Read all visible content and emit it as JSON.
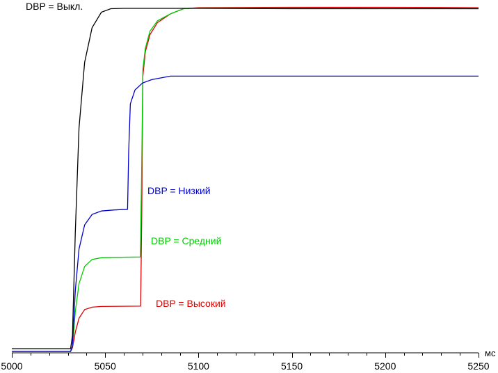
{
  "chart_data": {
    "type": "line",
    "x_unit": "мс",
    "xlim": [
      5000,
      5250
    ],
    "x_ticks": [
      5000,
      5050,
      5100,
      5150,
      5200,
      5250
    ],
    "x_tick_labels": [
      "5000",
      "5050",
      "5100",
      "5150",
      "5200",
      "5250"
    ],
    "ylim": [
      0,
      1
    ],
    "grid": false,
    "legend": "inline labels",
    "series": [
      {
        "name": "DBP = Выкл.",
        "color": "#000000",
        "points": [
          [
            5000,
            0.012
          ],
          [
            5031.5,
            0.012
          ],
          [
            5032.5,
            0.05
          ],
          [
            5034,
            0.35
          ],
          [
            5036,
            0.65
          ],
          [
            5039,
            0.84
          ],
          [
            5043,
            0.94
          ],
          [
            5048,
            0.985
          ],
          [
            5053,
            0.995
          ],
          [
            5060,
            0.996
          ],
          [
            5100,
            0.996
          ],
          [
            5150,
            0.995
          ],
          [
            5200,
            0.995
          ],
          [
            5250,
            0.995
          ]
        ]
      },
      {
        "name": "DBP = Низкий",
        "color": "#0000cc",
        "points": [
          [
            5000,
            0.004
          ],
          [
            5031.5,
            0.004
          ],
          [
            5032.5,
            0.02
          ],
          [
            5034,
            0.18
          ],
          [
            5036,
            0.3
          ],
          [
            5039,
            0.37
          ],
          [
            5043,
            0.4
          ],
          [
            5048,
            0.41
          ],
          [
            5055,
            0.413
          ],
          [
            5062,
            0.415
          ],
          [
            5062.6,
            0.58
          ],
          [
            5063.5,
            0.72
          ],
          [
            5066,
            0.76
          ],
          [
            5070,
            0.78
          ],
          [
            5075,
            0.79
          ],
          [
            5085,
            0.8
          ],
          [
            5100,
            0.8
          ],
          [
            5150,
            0.8
          ],
          [
            5200,
            0.8
          ],
          [
            5250,
            0.8
          ]
        ]
      },
      {
        "name": "DBP = Средний",
        "color": "#00cc00",
        "points": [
          [
            5000,
            0.004
          ],
          [
            5031.5,
            0.004
          ],
          [
            5032.5,
            0.02
          ],
          [
            5034,
            0.12
          ],
          [
            5036,
            0.2
          ],
          [
            5039,
            0.25
          ],
          [
            5043,
            0.27
          ],
          [
            5048,
            0.275
          ],
          [
            5055,
            0.276
          ],
          [
            5068.8,
            0.277
          ],
          [
            5069.5,
            0.5
          ],
          [
            5070.2,
            0.82
          ],
          [
            5071.5,
            0.88
          ],
          [
            5074,
            0.93
          ],
          [
            5078,
            0.96
          ],
          [
            5085,
            0.98
          ],
          [
            5092,
            0.995
          ],
          [
            5100,
            0.997
          ],
          [
            5150,
            0.997
          ],
          [
            5200,
            0.996
          ],
          [
            5250,
            0.995
          ]
        ]
      },
      {
        "name": "DBP = Высокий",
        "color": "#dd0000",
        "points": [
          [
            5000,
            0.004
          ],
          [
            5031.5,
            0.004
          ],
          [
            5032.5,
            0.015
          ],
          [
            5034,
            0.06
          ],
          [
            5036,
            0.1
          ],
          [
            5039,
            0.125
          ],
          [
            5043,
            0.132
          ],
          [
            5048,
            0.134
          ],
          [
            5069,
            0.135
          ],
          [
            5069.6,
            0.4
          ],
          [
            5070.2,
            0.8
          ],
          [
            5071.5,
            0.87
          ],
          [
            5074,
            0.92
          ],
          [
            5078,
            0.955
          ],
          [
            5085,
            0.98
          ],
          [
            5092,
            0.995
          ],
          [
            5100,
            0.998
          ],
          [
            5150,
            0.999
          ],
          [
            5200,
            0.999
          ],
          [
            5250,
            0.998
          ]
        ]
      }
    ]
  }
}
